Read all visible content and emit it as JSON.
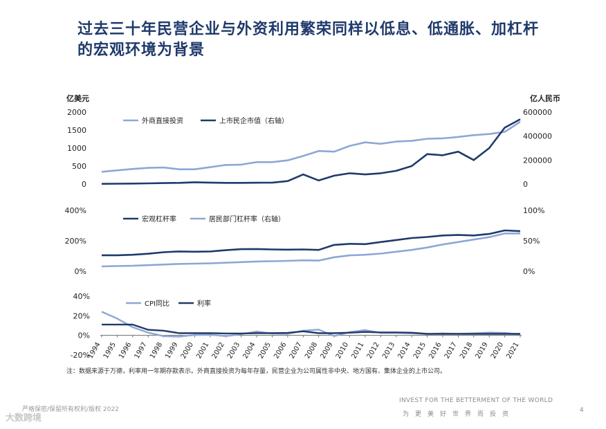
{
  "title": "过去三十年民营企业与外资利用繁荣同样以低息、低通胀、加杠杆的宏观环境为背景",
  "note": "注：数据来源于万德，利率用一年期存款表示。外商直接投资为每年存量，民营企业为公司属性非中央、地方国有、集体企业的上市公司。",
  "footer": {
    "left": "严格保密/保留所有权利/版权 2022",
    "right_en": "INVEST FOR THE BETTERMENT OF THE WORLD",
    "right_cn": "为更美好世界而投资",
    "page": "4",
    "watermark": "大数跨境"
  },
  "colors": {
    "light": "#8ea7d4",
    "dark": "#1f3a6b",
    "title": "#1f3a6b"
  },
  "chart_data": [
    {
      "type": "line",
      "x": [
        1994,
        1995,
        1996,
        1997,
        1998,
        1999,
        2000,
        2001,
        2002,
        2003,
        2004,
        2005,
        2006,
        2007,
        2008,
        2009,
        2010,
        2011,
        2012,
        2013,
        2014,
        2015,
        2016,
        2017,
        2018,
        2019,
        2020,
        2021
      ],
      "left_unit": "亿美元",
      "right_unit": "亿人民币",
      "left_ticks": [
        "2000",
        "1500",
        "1000",
        "500",
        "0"
      ],
      "right_ticks": [
        "600000",
        "400000",
        "200000",
        "0"
      ],
      "left_range": [
        0,
        2000
      ],
      "right_range": [
        0,
        600000
      ],
      "series": [
        {
          "name": "外商直接投资",
          "axis": "left",
          "color": "#8ea7d4",
          "values": [
            340,
            380,
            420,
            450,
            460,
            410,
            410,
            470,
            530,
            540,
            610,
            610,
            660,
            780,
            920,
            900,
            1060,
            1160,
            1120,
            1180,
            1200,
            1260,
            1270,
            1310,
            1360,
            1390,
            1450,
            1730
          ]
        },
        {
          "name": "上市民企市值（右轴）",
          "axis": "right",
          "color": "#1f3a6b",
          "values": [
            2000,
            3000,
            4000,
            6000,
            8000,
            10000,
            15000,
            12000,
            10000,
            10000,
            11000,
            12000,
            25000,
            80000,
            30000,
            70000,
            90000,
            80000,
            90000,
            110000,
            150000,
            250000,
            240000,
            270000,
            200000,
            300000,
            470000,
            540000
          ]
        }
      ]
    },
    {
      "type": "line",
      "x": [
        1994,
        1995,
        1996,
        1997,
        1998,
        1999,
        2000,
        2001,
        2002,
        2003,
        2004,
        2005,
        2006,
        2007,
        2008,
        2009,
        2010,
        2011,
        2012,
        2013,
        2014,
        2015,
        2016,
        2017,
        2018,
        2019,
        2020,
        2021
      ],
      "left_ticks": [
        "400%",
        "200%",
        "0%"
      ],
      "right_ticks": [
        "100%",
        "50%",
        "0%"
      ],
      "left_range": [
        0,
        400
      ],
      "right_range": [
        0,
        100
      ],
      "series": [
        {
          "name": "宏观杠杆率",
          "axis": "left",
          "color": "#1f3a6b",
          "values": [
            105,
            105,
            108,
            115,
            125,
            130,
            128,
            130,
            138,
            145,
            146,
            143,
            142,
            143,
            140,
            173,
            180,
            178,
            192,
            205,
            218,
            225,
            235,
            238,
            235,
            245,
            268,
            263
          ]
        },
        {
          "name": "居民部门杠杆率（右轴）",
          "axis": "right",
          "color": "#8ea7d4",
          "values": [
            8,
            8.5,
            9,
            10,
            11,
            12,
            12.5,
            13,
            14,
            15,
            16,
            16.5,
            17,
            18,
            17.5,
            23,
            26,
            27,
            29,
            32,
            35,
            39,
            44,
            48,
            52,
            56,
            62,
            62
          ]
        }
      ]
    },
    {
      "type": "line",
      "x": [
        1994,
        1995,
        1996,
        1997,
        1998,
        1999,
        2000,
        2001,
        2002,
        2003,
        2004,
        2005,
        2006,
        2007,
        2008,
        2009,
        2010,
        2011,
        2012,
        2013,
        2014,
        2015,
        2016,
        2017,
        2018,
        2019,
        2020,
        2021
      ],
      "y_ticks": [
        "40%",
        "20%",
        "0%",
        "-20%"
      ],
      "y_range": [
        -20,
        40
      ],
      "x_tick_labels": [
        "1994",
        "1995",
        "1996",
        "1997",
        "1998",
        "1999",
        "2000",
        "2001",
        "2002",
        "2003",
        "2004",
        "2005",
        "2006",
        "2007",
        "2008",
        "2009",
        "2010",
        "2011",
        "2012",
        "2013",
        "2014",
        "2015",
        "2016",
        "2017",
        "2018",
        "2019",
        "2020",
        "2021"
      ],
      "series": [
        {
          "name": "CPI同比",
          "color": "#8ea7d4",
          "values": [
            24.1,
            17.1,
            8.3,
            2.8,
            -0.8,
            -1.4,
            0.4,
            0.7,
            -0.8,
            1.2,
            3.9,
            1.8,
            1.5,
            4.8,
            5.9,
            -0.7,
            3.3,
            5.4,
            2.6,
            2.6,
            2.0,
            1.4,
            2.0,
            1.6,
            2.1,
            2.9,
            2.5,
            0.9
          ]
        },
        {
          "name": "利率",
          "color": "#1f3a6b",
          "values": [
            10.98,
            10.98,
            10.98,
            5.67,
            4.77,
            2.25,
            2.25,
            2.25,
            1.98,
            1.98,
            2.25,
            2.25,
            2.52,
            4.14,
            2.25,
            2.25,
            2.75,
            3.5,
            3.0,
            3.0,
            2.75,
            1.5,
            1.5,
            1.5,
            1.5,
            1.5,
            1.5,
            1.5
          ]
        }
      ]
    }
  ]
}
